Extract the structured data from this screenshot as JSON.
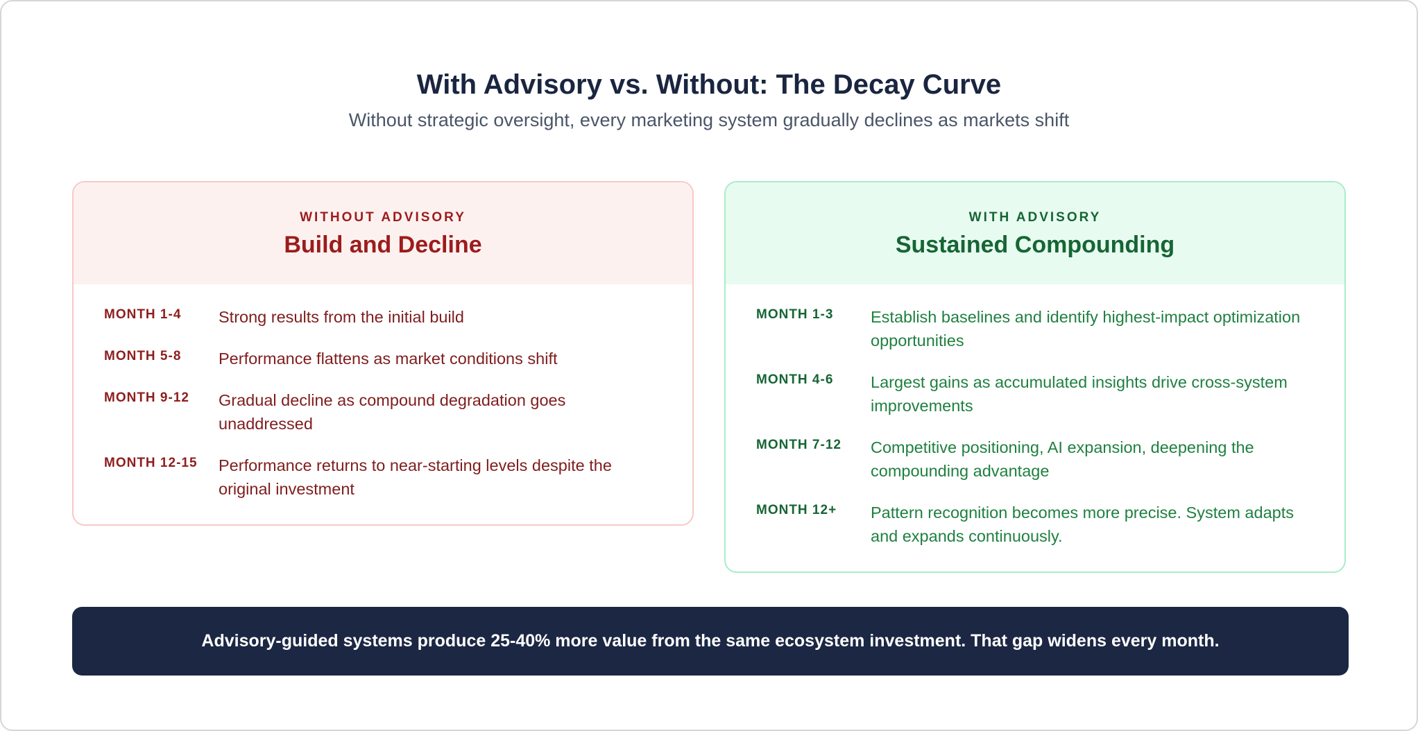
{
  "header": {
    "title": "With Advisory vs. Without: The Decay Curve",
    "subtitle": "Without strategic oversight, every marketing system gradually declines as markets shift"
  },
  "panels": [
    {
      "label": "WITHOUT ADVISORY",
      "heading": "Build and Decline",
      "rows": [
        {
          "period": "MONTH 1-4",
          "text": "Strong results from the initial build"
        },
        {
          "period": "MONTH 5-8",
          "text": "Performance flattens as market conditions shift"
        },
        {
          "period": "MONTH 9-12",
          "text": "Gradual decline as compound degradation goes unaddressed"
        },
        {
          "period": "MONTH 12-15",
          "text": "Performance returns to near-starting levels despite the original investment"
        }
      ]
    },
    {
      "label": "WITH ADVISORY",
      "heading": "Sustained Compounding",
      "rows": [
        {
          "period": "MONTH 1-3",
          "text": "Establish baselines and identify highest-impact optimization opportunities"
        },
        {
          "period": "MONTH 4-6",
          "text": "Largest gains as accumulated insights drive cross-system improvements"
        },
        {
          "period": "MONTH 7-12",
          "text": "Competitive positioning, AI expansion, deepening the compounding advantage"
        },
        {
          "period": "MONTH 12+",
          "text": "Pattern recognition becomes more precise. System adapts and expands continuously."
        }
      ]
    }
  ],
  "footer": {
    "text": "Advisory-guided systems produce 25-40% more value from the same ecosystem investment. That gap widens every month."
  }
}
